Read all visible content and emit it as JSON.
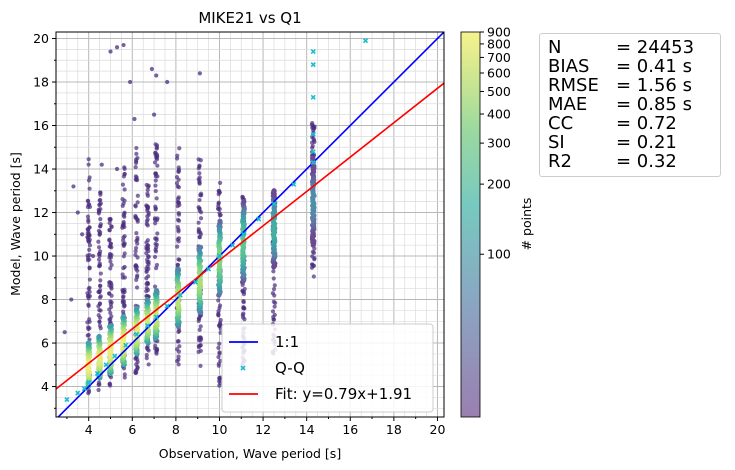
{
  "chart_data": {
    "type": "scatter",
    "title": "MIKE21 vs Q1",
    "xlabel": "Observation, Wave period [s]",
    "ylabel": "Model, Wave period [s]",
    "xlim": [
      2.5,
      20.3
    ],
    "ylim": [
      2.6,
      20.3
    ],
    "x_ticks": [
      4,
      6,
      8,
      10,
      12,
      14,
      16,
      18,
      20
    ],
    "y_ticks": [
      4,
      6,
      8,
      10,
      12,
      14,
      16,
      18,
      20
    ],
    "grid": true,
    "colorbar": {
      "label": "# points",
      "scale": "log",
      "range": [
        20,
        900
      ],
      "ticks": [
        100,
        200,
        300,
        400,
        500,
        600,
        700,
        800,
        900
      ],
      "colormap": [
        "#6a4a91",
        "#5b7fa8",
        "#3ba4a8",
        "#5ec691",
        "#aee174",
        "#f2ed83"
      ]
    },
    "legend": {
      "placement": "lower-right",
      "entries": [
        {
          "label": "1:1",
          "color": "#0000ff",
          "marker": "line"
        },
        {
          "label": "Q-Q",
          "color": "#17becf",
          "marker": "x"
        },
        {
          "label": "Fit: y=0.79x+1.91",
          "color": "#ff0000",
          "marker": "line"
        }
      ]
    },
    "lines": {
      "identity": {
        "slope": 1.0,
        "intercept": 0.0,
        "color": "#0000ff"
      },
      "fit": {
        "slope": 0.79,
        "intercept": 1.91,
        "color": "#ff0000"
      }
    },
    "qq_points": [
      [
        3.0,
        3.4
      ],
      [
        3.5,
        3.7
      ],
      [
        3.8,
        3.9
      ],
      [
        4.0,
        4.2
      ],
      [
        4.4,
        4.6
      ],
      [
        4.8,
        5.0
      ],
      [
        5.2,
        5.4
      ],
      [
        5.7,
        5.9
      ],
      [
        6.2,
        6.4
      ],
      [
        6.7,
        6.8
      ],
      [
        7.1,
        7.2
      ],
      [
        7.6,
        7.7
      ],
      [
        8.2,
        8.2
      ],
      [
        8.9,
        8.8
      ],
      [
        9.5,
        9.4
      ],
      [
        10.0,
        10.0
      ],
      [
        10.6,
        10.5
      ],
      [
        11.1,
        11.0
      ],
      [
        11.8,
        11.7
      ],
      [
        12.5,
        12.4
      ],
      [
        13.4,
        13.3
      ],
      [
        14.3,
        14.3
      ],
      [
        14.3,
        14.8
      ],
      [
        14.3,
        15.6
      ],
      [
        14.3,
        17.3
      ],
      [
        14.3,
        18.8
      ],
      [
        14.3,
        19.4
      ],
      [
        16.7,
        19.9
      ]
    ],
    "point_columns": [
      {
        "x": 4.0,
        "y_min": 3.6,
        "y_max": 14.5,
        "core": [
          4.0,
          6.0
        ],
        "peak": 900
      },
      {
        "x": 4.5,
        "y_min": 3.8,
        "y_max": 13.0,
        "core": [
          4.4,
          6.3
        ],
        "peak": 800
      },
      {
        "x": 5.0,
        "y_min": 4.0,
        "y_max": 12.0,
        "core": [
          4.6,
          6.8
        ],
        "peak": 850
      },
      {
        "x": 5.6,
        "y_min": 4.3,
        "y_max": 14.1,
        "core": [
          5.0,
          7.2
        ],
        "peak": 900
      },
      {
        "x": 6.2,
        "y_min": 4.5,
        "y_max": 15.2,
        "core": [
          5.5,
          7.6
        ],
        "peak": 800
      },
      {
        "x": 6.7,
        "y_min": 5.0,
        "y_max": 13.5,
        "core": [
          6.0,
          8.0
        ],
        "peak": 650
      },
      {
        "x": 7.1,
        "y_min": 5.3,
        "y_max": 15.5,
        "core": [
          6.2,
          8.4
        ],
        "peak": 600
      },
      {
        "x": 8.1,
        "y_min": 5.0,
        "y_max": 15.0,
        "core": [
          6.8,
          9.4
        ],
        "peak": 500
      },
      {
        "x": 9.1,
        "y_min": 4.5,
        "y_max": 14.6,
        "core": [
          7.4,
          10.4
        ],
        "peak": 400
      },
      {
        "x": 10.0,
        "y_min": 4.0,
        "y_max": 13.5,
        "core": [
          8.2,
          11.6
        ],
        "peak": 300
      },
      {
        "x": 11.1,
        "y_min": 5.0,
        "y_max": 12.8,
        "core": [
          8.8,
          12.5
        ],
        "peak": 200
      },
      {
        "x": 12.5,
        "y_min": 5.5,
        "y_max": 13.0,
        "core": [
          9.5,
          13.0
        ],
        "peak": 120
      },
      {
        "x": 14.3,
        "y_min": 9.0,
        "y_max": 16.2,
        "core": [
          10.5,
          14.5
        ],
        "peak": 60
      }
    ]
  },
  "stats": [
    {
      "key": "N",
      "value": "= 24453"
    },
    {
      "key": "BIAS",
      "value": "= 0.41 s"
    },
    {
      "key": "RMSE",
      "value": "= 1.56 s"
    },
    {
      "key": "MAE",
      "value": "= 0.85 s"
    },
    {
      "key": "CC",
      "value": "= 0.72"
    },
    {
      "key": "SI",
      "value": "= 0.21"
    },
    {
      "key": "R2",
      "value": "= 0.32"
    }
  ]
}
